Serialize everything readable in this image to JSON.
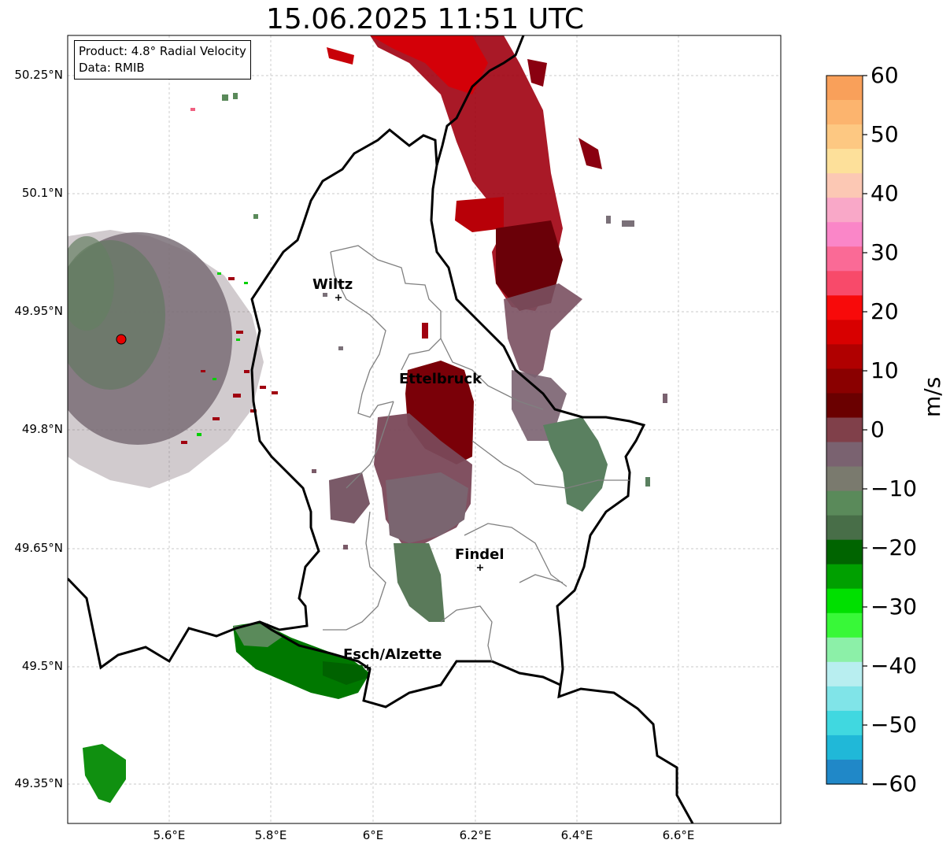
{
  "title": "15.06.2025 11:51 UTC",
  "info": {
    "product": "Product: 4.8° Radial Velocity",
    "source": "Data: RMIB"
  },
  "axes": {
    "lat_ticks": [
      "50.25°N",
      "50.1°N",
      "49.95°N",
      "49.8°N",
      "49.65°N",
      "49.5°N",
      "49.35°N"
    ],
    "lon_ticks": [
      "5.6°E",
      "5.8°E",
      "6°E",
      "6.2°E",
      "6.4°E",
      "6.6°E"
    ],
    "grid": true
  },
  "cities": [
    {
      "name": "Wiltz"
    },
    {
      "name": "Ettelbruck"
    },
    {
      "name": "Findel"
    },
    {
      "name": "Esch/Alzette"
    }
  ],
  "colorbar": {
    "unit": "m/s",
    "ticks": [
      "60",
      "50",
      "40",
      "30",
      "20",
      "10",
      "0",
      "−10",
      "−20",
      "−30",
      "−40",
      "−50",
      "−60"
    ],
    "range": [
      -60,
      60
    ],
    "colors_top_to_bottom": [
      "#f9a05a",
      "#fcb46e",
      "#fdc882",
      "#fde09a",
      "#fcc8b4",
      "#f9a8c8",
      "#fa86c8",
      "#fa6a96",
      "#f84a6a",
      "#f80a0a",
      "#d80000",
      "#b00000",
      "#8a0000",
      "#6a0000",
      "#80404a",
      "#7a6270",
      "#7a7a6e",
      "#5a8a5a",
      "#486e48",
      "#006400",
      "#00a000",
      "#00e000",
      "#38f838",
      "#8cf0a8",
      "#b8eef0",
      "#80e4e8",
      "#40d8e0",
      "#20b8d8",
      "#2088c8"
    ],
    "levels": [
      60,
      0,
      -60
    ]
  },
  "colors": {
    "radar_marker": "#e80000",
    "border": "#000000",
    "district": "#808080"
  }
}
